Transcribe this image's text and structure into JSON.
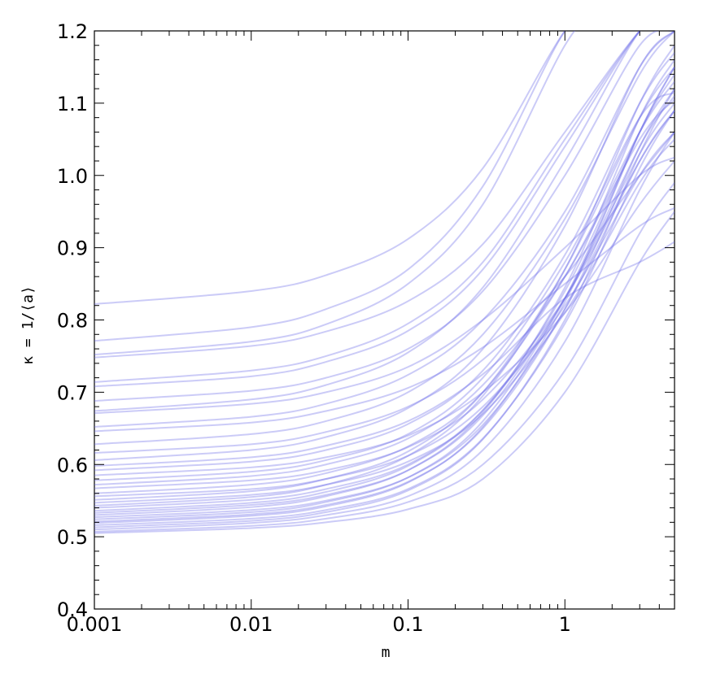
{
  "chart_data": {
    "type": "line",
    "title": "",
    "xlabel": "m",
    "ylabel": "κ = 1/⟨a⟩",
    "x_scale": "log",
    "xlim": [
      0.001,
      5
    ],
    "ylim": [
      0.4,
      1.2
    ],
    "x_ticks": [
      0.001,
      0.01,
      0.1,
      1
    ],
    "x_tick_labels": [
      "0.001",
      "0.01",
      "0.1",
      "1"
    ],
    "y_ticks": [
      0.4,
      0.5,
      0.6,
      0.7,
      0.8,
      0.9,
      1.0,
      1.1,
      1.2
    ],
    "y_tick_labels": [
      "0.4",
      "0.5",
      "0.6",
      "0.7",
      "0.8",
      "0.9",
      "1.0",
      "1.1",
      "1.2"
    ],
    "grid": false,
    "legend": "none",
    "line_color": "#6b6be8",
    "line_opacity": 0.35,
    "x": [
      0.001,
      0.01,
      0.03,
      0.1,
      0.3,
      1,
      3,
      5
    ],
    "series": [
      {
        "values": [
          0.822,
          0.84,
          0.862,
          0.912,
          1.01,
          1.2,
          null,
          null
        ]
      },
      {
        "values": [
          0.771,
          0.79,
          0.815,
          0.87,
          0.985,
          1.2,
          null,
          null
        ]
      },
      {
        "values": [
          0.752,
          0.77,
          0.794,
          0.85,
          0.96,
          1.18,
          null,
          null
        ]
      },
      {
        "values": [
          0.748,
          0.764,
          0.784,
          0.826,
          0.905,
          1.06,
          1.2,
          null
        ]
      },
      {
        "values": [
          0.714,
          0.73,
          0.75,
          0.795,
          0.88,
          1.05,
          1.2,
          null
        ]
      },
      {
        "values": [
          0.708,
          0.722,
          0.742,
          0.785,
          0.87,
          1.04,
          1.2,
          null
        ]
      },
      {
        "values": [
          0.688,
          0.702,
          0.72,
          0.76,
          0.84,
          1.0,
          1.18,
          1.2
        ]
      },
      {
        "values": [
          0.674,
          0.69,
          0.71,
          0.755,
          0.845,
          1.02,
          1.2,
          null
        ]
      },
      {
        "values": [
          0.671,
          0.684,
          0.7,
          0.735,
          0.8,
          0.9,
          1.0,
          1.025
        ]
      },
      {
        "values": [
          0.652,
          0.666,
          0.684,
          0.724,
          0.8,
          0.95,
          1.15,
          1.2
        ]
      },
      {
        "values": [
          0.646,
          0.658,
          0.674,
          0.706,
          0.762,
          0.85,
          0.93,
          0.955
        ]
      },
      {
        "values": [
          0.628,
          0.642,
          0.66,
          0.7,
          0.78,
          0.94,
          1.14,
          1.2
        ]
      },
      {
        "values": [
          0.616,
          0.628,
          0.645,
          0.68,
          0.745,
          0.86,
          1.0,
          1.06
        ]
      },
      {
        "values": [
          0.606,
          0.62,
          0.638,
          0.678,
          0.76,
          0.93,
          1.15,
          1.2
        ]
      },
      {
        "values": [
          0.598,
          0.61,
          0.626,
          0.66,
          0.725,
          0.83,
          0.88,
          0.908
        ]
      },
      {
        "values": [
          0.592,
          0.604,
          0.62,
          0.656,
          0.73,
          0.89,
          1.1,
          1.17
        ]
      },
      {
        "values": [
          0.585,
          0.596,
          0.61,
          0.64,
          0.7,
          0.81,
          0.96,
          1.02
        ]
      },
      {
        "values": [
          0.578,
          0.59,
          0.606,
          0.642,
          0.72,
          0.88,
          1.08,
          1.115
        ]
      },
      {
        "values": [
          0.572,
          0.584,
          0.6,
          0.636,
          0.71,
          0.86,
          1.05,
          1.105
        ]
      },
      {
        "values": [
          0.567,
          0.578,
          0.592,
          0.624,
          0.69,
          0.83,
          1.02,
          1.09
        ]
      },
      {
        "values": [
          0.56,
          0.572,
          0.588,
          0.625,
          0.7,
          0.86,
          1.06,
          1.13
        ]
      },
      {
        "values": [
          0.556,
          0.566,
          0.58,
          0.612,
          0.68,
          0.82,
          1.0,
          1.06
        ]
      },
      {
        "values": [
          0.551,
          0.563,
          0.58,
          0.618,
          0.7,
          0.87,
          1.08,
          1.15
        ]
      },
      {
        "values": [
          0.547,
          0.558,
          0.572,
          0.604,
          0.67,
          0.81,
          0.99,
          1.05
        ]
      },
      {
        "values": [
          0.543,
          0.555,
          0.572,
          0.612,
          0.695,
          0.87,
          1.1,
          1.18
        ]
      },
      {
        "values": [
          0.54,
          0.551,
          0.566,
          0.6,
          0.675,
          0.83,
          1.03,
          1.1
        ]
      },
      {
        "values": [
          0.536,
          0.547,
          0.562,
          0.598,
          0.675,
          0.84,
          1.06,
          1.14
        ]
      },
      {
        "values": [
          0.533,
          0.544,
          0.558,
          0.592,
          0.668,
          0.83,
          1.04,
          1.11
        ]
      },
      {
        "values": [
          0.53,
          0.541,
          0.556,
          0.592,
          0.672,
          0.845,
          1.08,
          1.16
        ]
      },
      {
        "values": [
          0.527,
          0.537,
          0.55,
          0.582,
          0.655,
          0.815,
          1.02,
          1.09
        ]
      },
      {
        "values": [
          0.524,
          0.534,
          0.548,
          0.582,
          0.66,
          0.83,
          1.06,
          1.15
        ]
      },
      {
        "values": [
          0.521,
          0.531,
          0.544,
          0.576,
          0.65,
          0.815,
          1.04,
          1.12
        ]
      },
      {
        "values": [
          0.519,
          0.529,
          0.542,
          0.575,
          0.652,
          0.825,
          1.06,
          1.15
        ]
      },
      {
        "values": [
          0.516,
          0.525,
          0.537,
          0.566,
          0.636,
          0.795,
          1.01,
          1.09
        ]
      },
      {
        "values": [
          0.513,
          0.522,
          0.534,
          0.564,
          0.635,
          0.8,
          1.03,
          1.12
        ]
      },
      {
        "values": [
          0.51,
          0.519,
          0.53,
          0.556,
          0.62,
          0.77,
          0.98,
          1.06
        ]
      },
      {
        "values": [
          0.507,
          0.515,
          0.525,
          0.548,
          0.6,
          0.73,
          0.92,
          0.99
        ]
      },
      {
        "values": [
          0.505,
          0.512,
          0.52,
          0.538,
          0.58,
          0.7,
          0.88,
          0.95
        ]
      }
    ]
  }
}
